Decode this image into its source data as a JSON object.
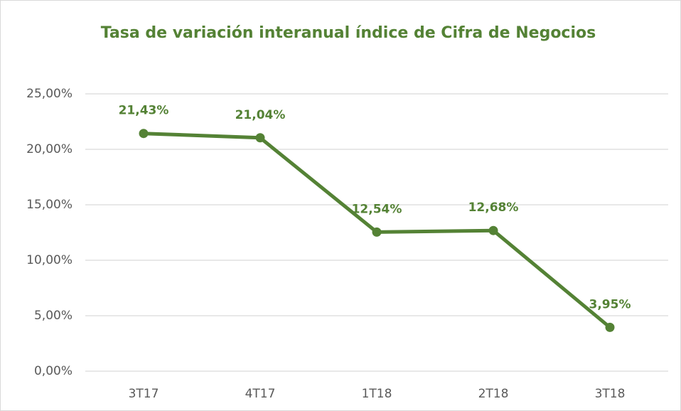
{
  "chart_data": {
    "type": "line",
    "title": "Tasa de variación interanual índice de Cifra de Negocios",
    "categories": [
      "3T17",
      "4T17",
      "1T18",
      "2T18",
      "3T18"
    ],
    "series": [
      {
        "name": "Tasa de variación interanual",
        "color": "#548235",
        "values": [
          21.43,
          21.04,
          12.54,
          12.68,
          3.95
        ],
        "value_labels": [
          "21,43%",
          "21,04%",
          "12,54%",
          "12,68%",
          "3,95%"
        ]
      }
    ],
    "ylim": [
      0,
      25
    ],
    "yticks": [
      {
        "value": 0,
        "label": "0,00%"
      },
      {
        "value": 5,
        "label": "5,00%"
      },
      {
        "value": 10,
        "label": "10,00%"
      },
      {
        "value": 15,
        "label": "15,00%"
      },
      {
        "value": 20,
        "label": "20,00%"
      },
      {
        "value": 25,
        "label": "25,00%"
      }
    ],
    "grid": true
  }
}
